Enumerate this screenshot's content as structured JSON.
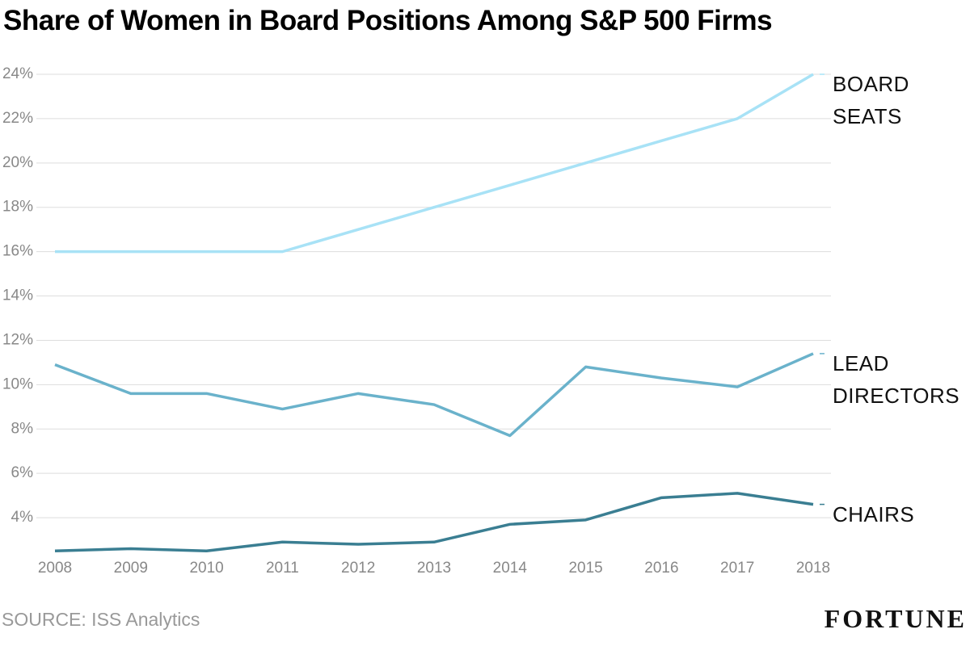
{
  "chart_data": {
    "type": "line",
    "title": "Share of Women in Board Positions Among S&P 500 Firms",
    "source": "SOURCE: ISS Analytics",
    "brand": "FORTUNE",
    "categories": [
      "2008",
      "2009",
      "2010",
      "2011",
      "2012",
      "2013",
      "2014",
      "2015",
      "2016",
      "2017",
      "2018"
    ],
    "series": [
      {
        "name": "BOARD SEATS",
        "color": "#a8e2f6",
        "values": [
          16,
          16,
          16,
          16,
          17,
          18,
          19,
          20,
          21,
          22,
          24
        ]
      },
      {
        "name": "LEAD DIRECTORS",
        "color": "#6ab2cb",
        "values": [
          10.9,
          9.6,
          9.6,
          8.9,
          9.6,
          9.1,
          7.7,
          10.8,
          10.3,
          9.9,
          11.4
        ]
      },
      {
        "name": "CHAIRS",
        "color": "#3a7e92",
        "values": [
          2.5,
          2.6,
          2.5,
          2.9,
          2.8,
          2.9,
          3.7,
          3.9,
          4.9,
          5.1,
          4.6
        ]
      }
    ],
    "ylim": [
      2.4,
      24
    ],
    "yticks": [
      {
        "value": 4,
        "label": "4%"
      },
      {
        "value": 6,
        "label": "6%"
      },
      {
        "value": 8,
        "label": "8%"
      },
      {
        "value": 10,
        "label": "10%"
      },
      {
        "value": 12,
        "label": "12%"
      },
      {
        "value": 14,
        "label": "14%"
      },
      {
        "value": 16,
        "label": "16%"
      },
      {
        "value": 18,
        "label": "18%"
      },
      {
        "value": 20,
        "label": "20%"
      },
      {
        "value": 22,
        "label": "22%"
      },
      {
        "value": 24,
        "label": "24%"
      }
    ],
    "grid": true
  }
}
